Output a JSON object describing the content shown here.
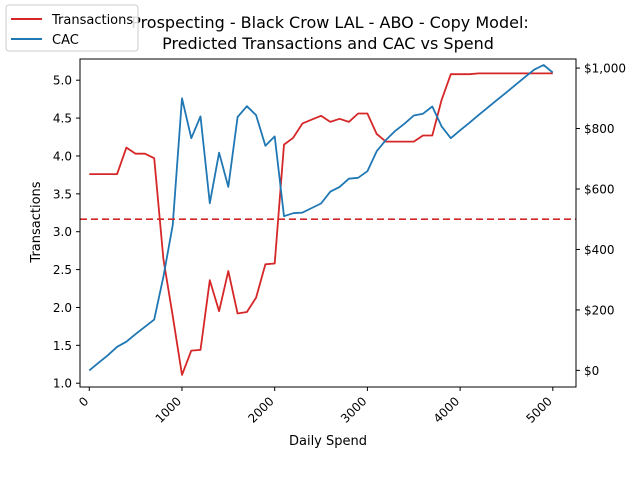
{
  "chart_data": {
    "type": "line",
    "title_line1": "Prospecting - Black Crow LAL - ABO - Copy Model:",
    "title_line2": "Predicted Transactions and CAC vs Spend",
    "xlabel": "Daily Spend",
    "ylabel": "Transactions",
    "xlim": [
      -100,
      5250
    ],
    "ylim": [
      0.95,
      5.28
    ],
    "y2lim": [
      -55,
      1030
    ],
    "xticks": [
      0,
      1000,
      2000,
      3000,
      4000,
      5000
    ],
    "xtick_labels": [
      "0",
      "1000",
      "2000",
      "3000",
      "4000",
      "5000"
    ],
    "yticks": [
      1.0,
      1.5,
      2.0,
      2.5,
      3.0,
      3.5,
      4.0,
      4.5,
      5.0
    ],
    "ytick_labels": [
      "1.0",
      "1.5",
      "2.0",
      "2.5",
      "3.0",
      "3.5",
      "4.0",
      "4.5",
      "5.0"
    ],
    "y2ticks": [
      0,
      200,
      400,
      600,
      800,
      1000
    ],
    "y2tick_labels": [
      "$0",
      "$200",
      "$400",
      "$600",
      "$800",
      "$1,000"
    ],
    "reference_line": {
      "y2": 500,
      "style": "dashed",
      "color": "#d62728"
    },
    "legend": {
      "placement": "top-left",
      "entries": [
        "Transactions",
        "CAC"
      ]
    },
    "series": [
      {
        "name": "Transactions",
        "axis": "left",
        "color": "#d62728",
        "x": [
          0,
          100,
          200,
          300,
          400,
          500,
          600,
          700,
          800,
          900,
          1000,
          1100,
          1200,
          1300,
          1400,
          1500,
          1600,
          1700,
          1800,
          1900,
          2000,
          2100,
          2200,
          2300,
          2400,
          2500,
          2600,
          2700,
          2800,
          2900,
          3000,
          3100,
          3200,
          3300,
          3400,
          3500,
          3600,
          3700,
          3800,
          3900,
          4000,
          4100,
          4200,
          4300,
          4400,
          4500,
          4600,
          4700,
          4800,
          4900,
          5000
        ],
        "values": [
          3.76,
          3.76,
          3.76,
          3.76,
          4.11,
          4.03,
          4.03,
          3.97,
          2.64,
          1.89,
          1.11,
          1.43,
          1.44,
          2.36,
          1.95,
          2.48,
          1.92,
          1.94,
          2.13,
          2.57,
          2.58,
          4.15,
          4.24,
          4.43,
          4.48,
          4.53,
          4.45,
          4.49,
          4.45,
          4.56,
          4.56,
          4.29,
          4.19,
          4.19,
          4.19,
          4.19,
          4.27,
          4.27,
          4.74,
          5.08,
          5.08,
          5.08,
          5.09,
          5.09,
          5.09,
          5.09,
          5.09,
          5.09,
          5.09,
          5.09,
          5.09
        ]
      },
      {
        "name": "CAC",
        "axis": "right",
        "color": "#1f77b4",
        "x": [
          0,
          100,
          200,
          300,
          400,
          500,
          600,
          700,
          800,
          900,
          1000,
          1100,
          1200,
          1300,
          1400,
          1500,
          1600,
          1700,
          1800,
          1900,
          2000,
          2100,
          2200,
          2300,
          2400,
          2500,
          2600,
          2700,
          2800,
          2900,
          3000,
          3100,
          3200,
          3300,
          3400,
          3500,
          3600,
          3700,
          3800,
          3900,
          4000,
          4100,
          4200,
          4300,
          4400,
          4500,
          4600,
          4700,
          4800,
          4900,
          5000
        ],
        "values": [
          0,
          25,
          50,
          78,
          95,
          120,
          144,
          168,
          310,
          480,
          900,
          768,
          840,
          553,
          720,
          607,
          838,
          874,
          844,
          743,
          774,
          510,
          520,
          522,
          537,
          552,
          591,
          607,
          634,
          637,
          659,
          725,
          762,
          792,
          816,
          843,
          849,
          873,
          807,
          768,
          794,
          819,
          845,
          870,
          895,
          920,
          945,
          970,
          995,
          1010,
          985
        ]
      }
    ]
  }
}
